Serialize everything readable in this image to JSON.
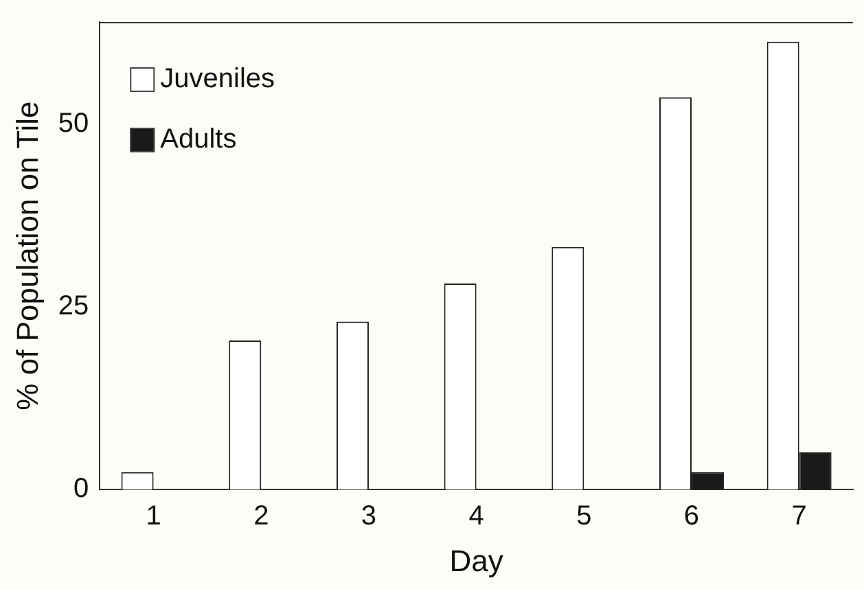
{
  "chart_data": {
    "type": "bar",
    "xlabel": "Day",
    "ylabel": "% of Population on Tile",
    "categories": [
      "1",
      "2",
      "3",
      "4",
      "5",
      "6",
      "7"
    ],
    "series": [
      {
        "name": "Juveniles",
        "color": "#ffffff",
        "values": [
          2.4,
          20.4,
          23,
          28.2,
          33.2,
          53.7,
          61.3
        ]
      },
      {
        "name": "Adults",
        "color": "#1a1a1a",
        "values": [
          0,
          0,
          0,
          0,
          0,
          2.4,
          5.1
        ]
      }
    ],
    "ylim": [
      0,
      64
    ],
    "yticks": [
      0,
      25,
      50
    ],
    "grid": false,
    "legend": "top left"
  }
}
